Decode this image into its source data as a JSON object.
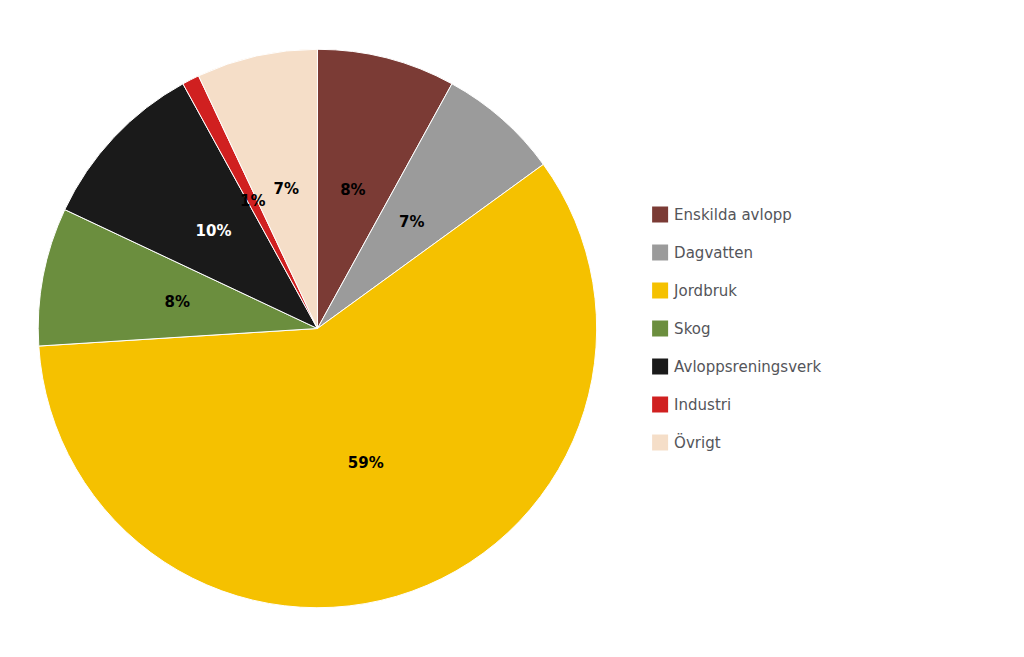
{
  "chart_data": {
    "type": "pie",
    "categories": [
      "Enskilda avlopp",
      "Dagvatten",
      "Jordbruk",
      "Skog",
      "Avloppsreningsverk",
      "Industri",
      "Övrigt"
    ],
    "values": [
      8,
      7,
      59,
      8,
      10,
      1,
      7
    ],
    "value_labels": [
      "8%",
      "7%",
      "59%",
      "8%",
      "10%",
      "1%",
      "7%"
    ],
    "colors": [
      "#7B3B35",
      "#9B9B9B",
      "#F5C100",
      "#6B8E3E",
      "#1A1A1A",
      "#D02020",
      "#F5DEC8"
    ],
    "data_labels": true,
    "legend": "right"
  }
}
